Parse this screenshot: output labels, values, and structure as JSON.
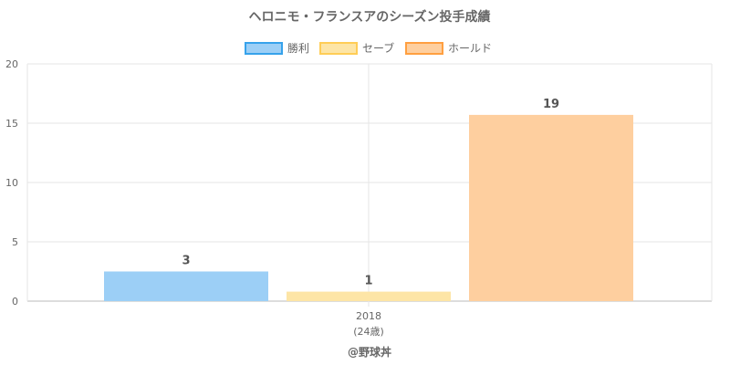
{
  "chart_data": {
    "type": "bar",
    "title": "ヘロニモ・フランスアのシーズン投手成績",
    "categories": [
      "2018"
    ],
    "category_sublabels": [
      "(24歳)"
    ],
    "series": [
      {
        "name": "勝利",
        "values": [
          3
        ],
        "displayed_labels": [
          "3"
        ],
        "color": "#9ccff6",
        "border_color": "#36a2eb"
      },
      {
        "name": "セーブ",
        "values": [
          1
        ],
        "displayed_labels": [
          "1"
        ],
        "color": "#fde5a6",
        "border_color": "#ffcd56"
      },
      {
        "name": "ホールド",
        "values": [
          19
        ],
        "displayed_labels": [
          "19"
        ],
        "color": "#fecf9f",
        "border_color": "#ff9f40"
      }
    ],
    "bar_heights_shown": [
      2.5,
      0.8,
      15.7
    ],
    "ylim": [
      0,
      20
    ],
    "yticks": [
      0,
      5,
      10,
      15,
      20
    ],
    "grid": true,
    "legend_position": "top",
    "xlabel": "",
    "ylabel": ""
  },
  "footer": {
    "credit": "@野球丼"
  }
}
